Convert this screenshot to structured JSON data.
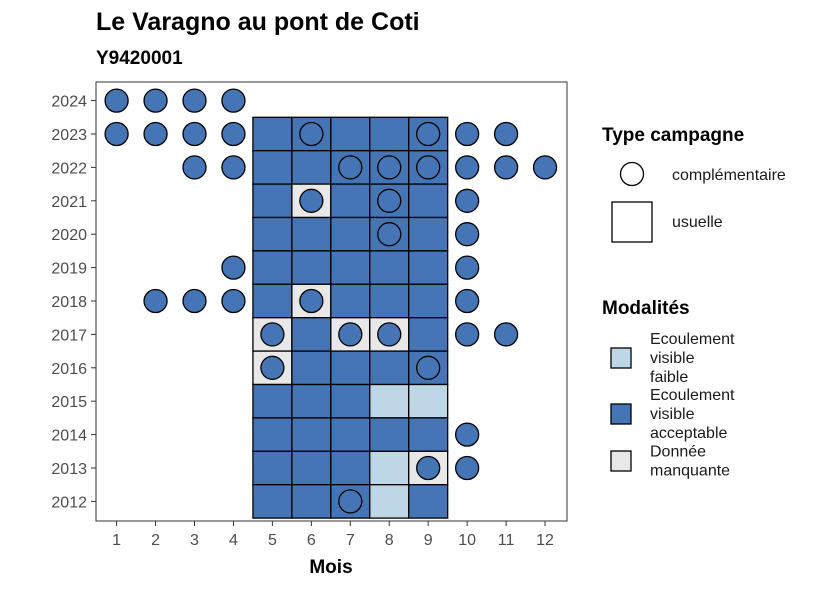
{
  "chart_data": {
    "type": "heatmap",
    "title": "Le Varagno au pont de Coti",
    "subtitle": "Y9420001",
    "xlabel": "Mois",
    "ylabel": "",
    "x_ticks": [
      1,
      2,
      3,
      4,
      5,
      6,
      7,
      8,
      9,
      10,
      11,
      12
    ],
    "y_ticks": [
      2012,
      2013,
      2014,
      2015,
      2016,
      2017,
      2018,
      2019,
      2020,
      2021,
      2022,
      2023,
      2024
    ],
    "colors": {
      "faible": "#bdd7e7",
      "acceptable": "#4575b4",
      "manquante": "#e8e8e8"
    },
    "legend_shape": {
      "title": "Type campagne",
      "items": [
        "complémentaire",
        "usuelle"
      ]
    },
    "legend_fill": {
      "title": "Modalités",
      "items": [
        {
          "key": "faible",
          "lines": [
            "Ecoulement",
            "visible",
            "faible"
          ]
        },
        {
          "key": "acceptable",
          "lines": [
            "Ecoulement",
            "visible",
            "acceptable"
          ]
        },
        {
          "key": "manquante",
          "lines": [
            "Donnée",
            "manquante"
          ]
        }
      ]
    },
    "usuelle": [
      {
        "year": 2023,
        "months": [
          "acceptable",
          "acceptable",
          "acceptable",
          "acceptable",
          "acceptable"
        ]
      },
      {
        "year": 2022,
        "months": [
          "acceptable",
          "acceptable",
          "acceptable",
          "acceptable",
          "acceptable"
        ]
      },
      {
        "year": 2021,
        "months": [
          "acceptable",
          "manquante",
          "acceptable",
          "acceptable",
          "acceptable"
        ]
      },
      {
        "year": 2020,
        "months": [
          "acceptable",
          "acceptable",
          "acceptable",
          "acceptable",
          "acceptable"
        ]
      },
      {
        "year": 2019,
        "months": [
          "acceptable",
          "acceptable",
          "acceptable",
          "acceptable",
          "acceptable"
        ]
      },
      {
        "year": 2018,
        "months": [
          "acceptable",
          "manquante",
          "acceptable",
          "acceptable",
          "acceptable"
        ]
      },
      {
        "year": 2017,
        "months": [
          "manquante",
          "acceptable",
          "manquante",
          "manquante",
          "acceptable"
        ]
      },
      {
        "year": 2016,
        "months": [
          "manquante",
          "acceptable",
          "acceptable",
          "acceptable",
          "acceptable"
        ]
      },
      {
        "year": 2015,
        "months": [
          "acceptable",
          "acceptable",
          "acceptable",
          "faible",
          "faible"
        ]
      },
      {
        "year": 2014,
        "months": [
          "acceptable",
          "acceptable",
          "acceptable",
          "acceptable",
          "acceptable"
        ]
      },
      {
        "year": 2013,
        "months": [
          "acceptable",
          "acceptable",
          "acceptable",
          "faible",
          "manquante"
        ]
      },
      {
        "year": 2012,
        "months": [
          "acceptable",
          "acceptable",
          "acceptable",
          "faible",
          "acceptable"
        ]
      }
    ],
    "usuelle_first_month": 5,
    "complementaire": [
      {
        "year": 2024,
        "month": 1,
        "mod": "acceptable"
      },
      {
        "year": 2024,
        "month": 2,
        "mod": "acceptable"
      },
      {
        "year": 2024,
        "month": 3,
        "mod": "acceptable"
      },
      {
        "year": 2024,
        "month": 4,
        "mod": "acceptable"
      },
      {
        "year": 2023,
        "month": 1,
        "mod": "acceptable"
      },
      {
        "year": 2023,
        "month": 2,
        "mod": "acceptable"
      },
      {
        "year": 2023,
        "month": 3,
        "mod": "acceptable"
      },
      {
        "year": 2023,
        "month": 4,
        "mod": "acceptable"
      },
      {
        "year": 2023,
        "month": 6,
        "mod": "acceptable"
      },
      {
        "year": 2023,
        "month": 9,
        "mod": "acceptable"
      },
      {
        "year": 2023,
        "month": 10,
        "mod": "acceptable"
      },
      {
        "year": 2023,
        "month": 11,
        "mod": "acceptable"
      },
      {
        "year": 2022,
        "month": 3,
        "mod": "acceptable"
      },
      {
        "year": 2022,
        "month": 4,
        "mod": "acceptable"
      },
      {
        "year": 2022,
        "month": 7,
        "mod": "acceptable"
      },
      {
        "year": 2022,
        "month": 8,
        "mod": "acceptable"
      },
      {
        "year": 2022,
        "month": 9,
        "mod": "acceptable"
      },
      {
        "year": 2022,
        "month": 10,
        "mod": "acceptable"
      },
      {
        "year": 2022,
        "month": 11,
        "mod": "acceptable"
      },
      {
        "year": 2022,
        "month": 12,
        "mod": "acceptable"
      },
      {
        "year": 2021,
        "month": 6,
        "mod": "acceptable"
      },
      {
        "year": 2021,
        "month": 8,
        "mod": "acceptable"
      },
      {
        "year": 2021,
        "month": 10,
        "mod": "acceptable"
      },
      {
        "year": 2020,
        "month": 8,
        "mod": "acceptable"
      },
      {
        "year": 2020,
        "month": 10,
        "mod": "acceptable"
      },
      {
        "year": 2019,
        "month": 4,
        "mod": "acceptable"
      },
      {
        "year": 2019,
        "month": 10,
        "mod": "acceptable"
      },
      {
        "year": 2018,
        "month": 2,
        "mod": "acceptable"
      },
      {
        "year": 2018,
        "month": 3,
        "mod": "acceptable"
      },
      {
        "year": 2018,
        "month": 4,
        "mod": "acceptable"
      },
      {
        "year": 2018,
        "month": 6,
        "mod": "acceptable"
      },
      {
        "year": 2018,
        "month": 10,
        "mod": "acceptable"
      },
      {
        "year": 2017,
        "month": 5,
        "mod": "acceptable"
      },
      {
        "year": 2017,
        "month": 7,
        "mod": "acceptable"
      },
      {
        "year": 2017,
        "month": 8,
        "mod": "acceptable"
      },
      {
        "year": 2017,
        "month": 10,
        "mod": "acceptable"
      },
      {
        "year": 2017,
        "month": 11,
        "mod": "acceptable"
      },
      {
        "year": 2016,
        "month": 5,
        "mod": "acceptable"
      },
      {
        "year": 2016,
        "month": 9,
        "mod": "acceptable"
      },
      {
        "year": 2014,
        "month": 10,
        "mod": "acceptable"
      },
      {
        "year": 2013,
        "month": 9,
        "mod": "acceptable"
      },
      {
        "year": 2013,
        "month": 10,
        "mod": "acceptable"
      },
      {
        "year": 2012,
        "month": 7,
        "mod": "acceptable"
      }
    ]
  }
}
